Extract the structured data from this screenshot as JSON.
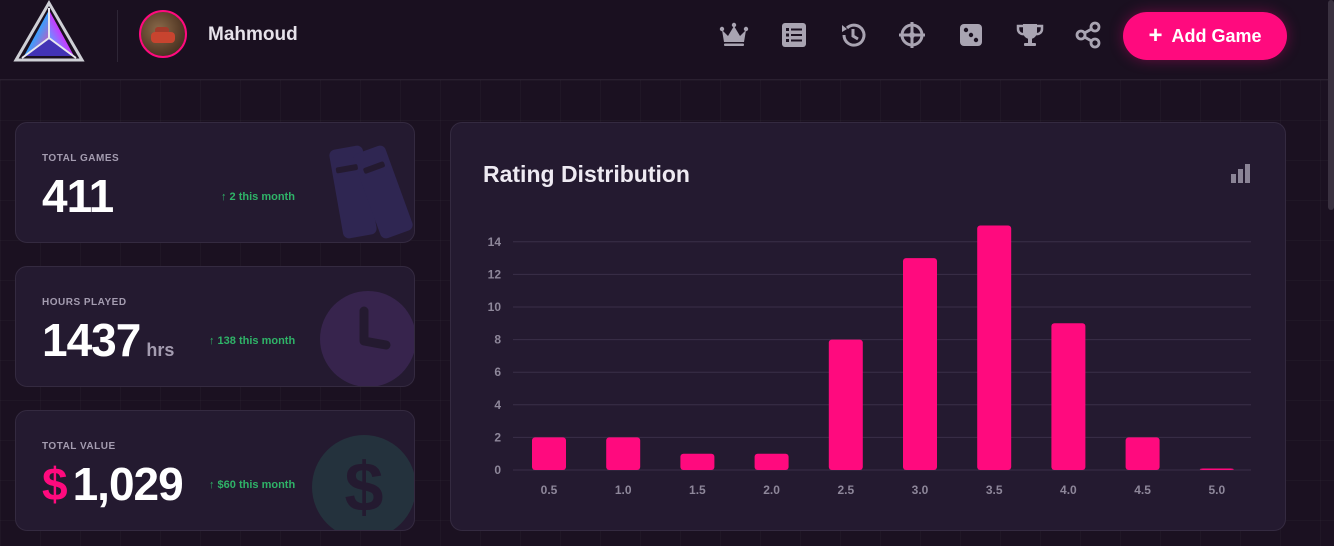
{
  "header": {
    "username": "Mahmoud",
    "add_label": "Add Game",
    "nav_icons": [
      "crown-icon",
      "list-icon",
      "history-icon",
      "crosshair-icon",
      "dice-icon",
      "trophy-icon",
      "share-icon"
    ]
  },
  "stats": {
    "total_games": {
      "label": "TOTAL GAMES",
      "value": "411",
      "trend": "↑ 2 this month"
    },
    "hours_played": {
      "label": "HOURS PLAYED",
      "value": "1437",
      "unit": "hrs",
      "trend": "↑ 138 this month"
    },
    "total_value": {
      "label": "TOTAL VALUE",
      "currency": "$",
      "value": "1,029",
      "trend": "↑ $60 this month"
    }
  },
  "chart_data": {
    "type": "bar",
    "title": "Rating Distribution",
    "categories": [
      "0.5",
      "1.0",
      "1.5",
      "2.0",
      "2.5",
      "3.0",
      "3.5",
      "4.0",
      "4.5",
      "5.0"
    ],
    "values": [
      2,
      2,
      1,
      1,
      8,
      13,
      15,
      9,
      2,
      0
    ],
    "yticks": [
      "0",
      "2",
      "4",
      "6",
      "8",
      "10",
      "12",
      "14"
    ],
    "ylim": [
      0,
      15
    ],
    "grid": true,
    "color": "#ff0a7e"
  },
  "colors": {
    "accent": "#ff0a7e",
    "trend": "#2fb368",
    "card": "#241a30",
    "background": "#1b1121"
  }
}
